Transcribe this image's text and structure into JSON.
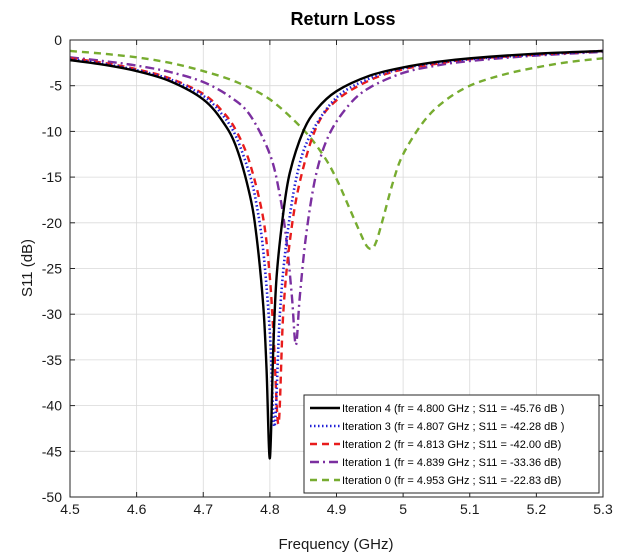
{
  "chart_data": {
    "type": "line",
    "title": "Return Loss",
    "xlabel": "Frequency (GHz)",
    "ylabel": "S11 (dB)",
    "xlim": [
      4.5,
      5.3
    ],
    "ylim": [
      -50,
      0
    ],
    "xticks": [
      "4.5",
      "4.6",
      "4.7",
      "4.8",
      "4.9",
      "5",
      "5.1",
      "5.2",
      "5.3"
    ],
    "yticks": [
      "0",
      "-5",
      "-10",
      "-15",
      "-20",
      "-25",
      "-30",
      "-35",
      "-40",
      "-45",
      "-50"
    ],
    "grid": true,
    "legend_position": "bottom-right",
    "series": [
      {
        "name": "Iteration 4 (fr = 4.800 GHz ; S11 = -45.76 dB )",
        "color": "#000000",
        "dash": "solid",
        "x": [
          4.5,
          4.55,
          4.6,
          4.65,
          4.7,
          4.73,
          4.75,
          4.77,
          4.78,
          4.79,
          4.795,
          4.8,
          4.805,
          4.81,
          4.82,
          4.83,
          4.85,
          4.87,
          4.9,
          4.95,
          5.0,
          5.05,
          5.1,
          5.2,
          5.3
        ],
        "y": [
          -2.2,
          -2.7,
          -3.4,
          -4.5,
          -6.5,
          -9.0,
          -11.8,
          -17.0,
          -21.5,
          -29.0,
          -36.0,
          -45.76,
          -34.0,
          -26.0,
          -19.0,
          -14.5,
          -10.0,
          -7.6,
          -5.6,
          -3.9,
          -3.0,
          -2.4,
          -2.0,
          -1.5,
          -1.2
        ]
      },
      {
        "name": "Iteration 3 (fr = 4.807 GHz ; S11 = -42.28 dB )",
        "color": "#1f1fd6",
        "dash": "dotted",
        "x": [
          4.5,
          4.55,
          4.6,
          4.65,
          4.7,
          4.73,
          4.75,
          4.77,
          4.78,
          4.79,
          4.8,
          4.807,
          4.815,
          4.825,
          4.84,
          4.86,
          4.9,
          4.95,
          5.0,
          5.05,
          5.1,
          5.2,
          5.3
        ],
        "y": [
          -2.1,
          -2.6,
          -3.3,
          -4.3,
          -6.1,
          -8.3,
          -10.7,
          -14.8,
          -18.0,
          -23.0,
          -32.0,
          -42.28,
          -30.0,
          -22.0,
          -15.0,
          -10.5,
          -6.3,
          -4.2,
          -3.1,
          -2.5,
          -2.1,
          -1.6,
          -1.2
        ]
      },
      {
        "name": "Iteration 2 (fr = 4.813 GHz ; S11 = -42.00 dB)",
        "color": "#e81c1c",
        "dash": "dashed",
        "x": [
          4.5,
          4.55,
          4.6,
          4.65,
          4.7,
          4.73,
          4.75,
          4.77,
          4.79,
          4.8,
          4.806,
          4.813,
          4.82,
          4.83,
          4.845,
          4.87,
          4.9,
          4.95,
          5.0,
          5.05,
          5.1,
          5.2,
          5.3
        ],
        "y": [
          -2.0,
          -2.5,
          -3.2,
          -4.2,
          -5.9,
          -7.9,
          -10.0,
          -13.5,
          -19.5,
          -26.0,
          -33.0,
          -42.0,
          -30.0,
          -22.0,
          -15.5,
          -9.5,
          -6.6,
          -4.4,
          -3.2,
          -2.6,
          -2.1,
          -1.6,
          -1.2
        ]
      },
      {
        "name": "Iteration 1 (fr = 4.839 GHz ; S11 = -33.36 dB)",
        "color": "#7b2fa0",
        "dash": "dashdot",
        "x": [
          4.5,
          4.55,
          4.6,
          4.65,
          4.7,
          4.74,
          4.77,
          4.8,
          4.815,
          4.825,
          4.833,
          4.839,
          4.845,
          4.855,
          4.87,
          4.89,
          4.92,
          4.95,
          5.0,
          5.05,
          5.1,
          5.2,
          5.3
        ],
        "y": [
          -1.9,
          -2.3,
          -2.8,
          -3.5,
          -4.6,
          -6.2,
          -8.2,
          -12.5,
          -17.0,
          -22.0,
          -28.0,
          -33.36,
          -28.0,
          -21.0,
          -14.5,
          -10.2,
          -7.0,
          -5.2,
          -3.6,
          -2.8,
          -2.3,
          -1.7,
          -1.3
        ]
      },
      {
        "name": "Iteration 0 (fr = 4.953 GHz ; S11 = -22.83 dB)",
        "color": "#77ac30",
        "dash": "dashed",
        "x": [
          4.5,
          4.55,
          4.6,
          4.65,
          4.7,
          4.75,
          4.8,
          4.85,
          4.88,
          4.9,
          4.92,
          4.935,
          4.945,
          4.953,
          4.96,
          4.97,
          4.985,
          5.0,
          5.03,
          5.06,
          5.1,
          5.15,
          5.2,
          5.25,
          5.3
        ],
        "y": [
          -1.2,
          -1.5,
          -1.9,
          -2.5,
          -3.4,
          -4.6,
          -6.5,
          -9.8,
          -12.6,
          -15.2,
          -18.5,
          -21.0,
          -22.5,
          -22.83,
          -22.0,
          -19.5,
          -15.5,
          -12.5,
          -9.0,
          -6.8,
          -5.0,
          -3.8,
          -3.0,
          -2.4,
          -2.0
        ]
      }
    ]
  }
}
